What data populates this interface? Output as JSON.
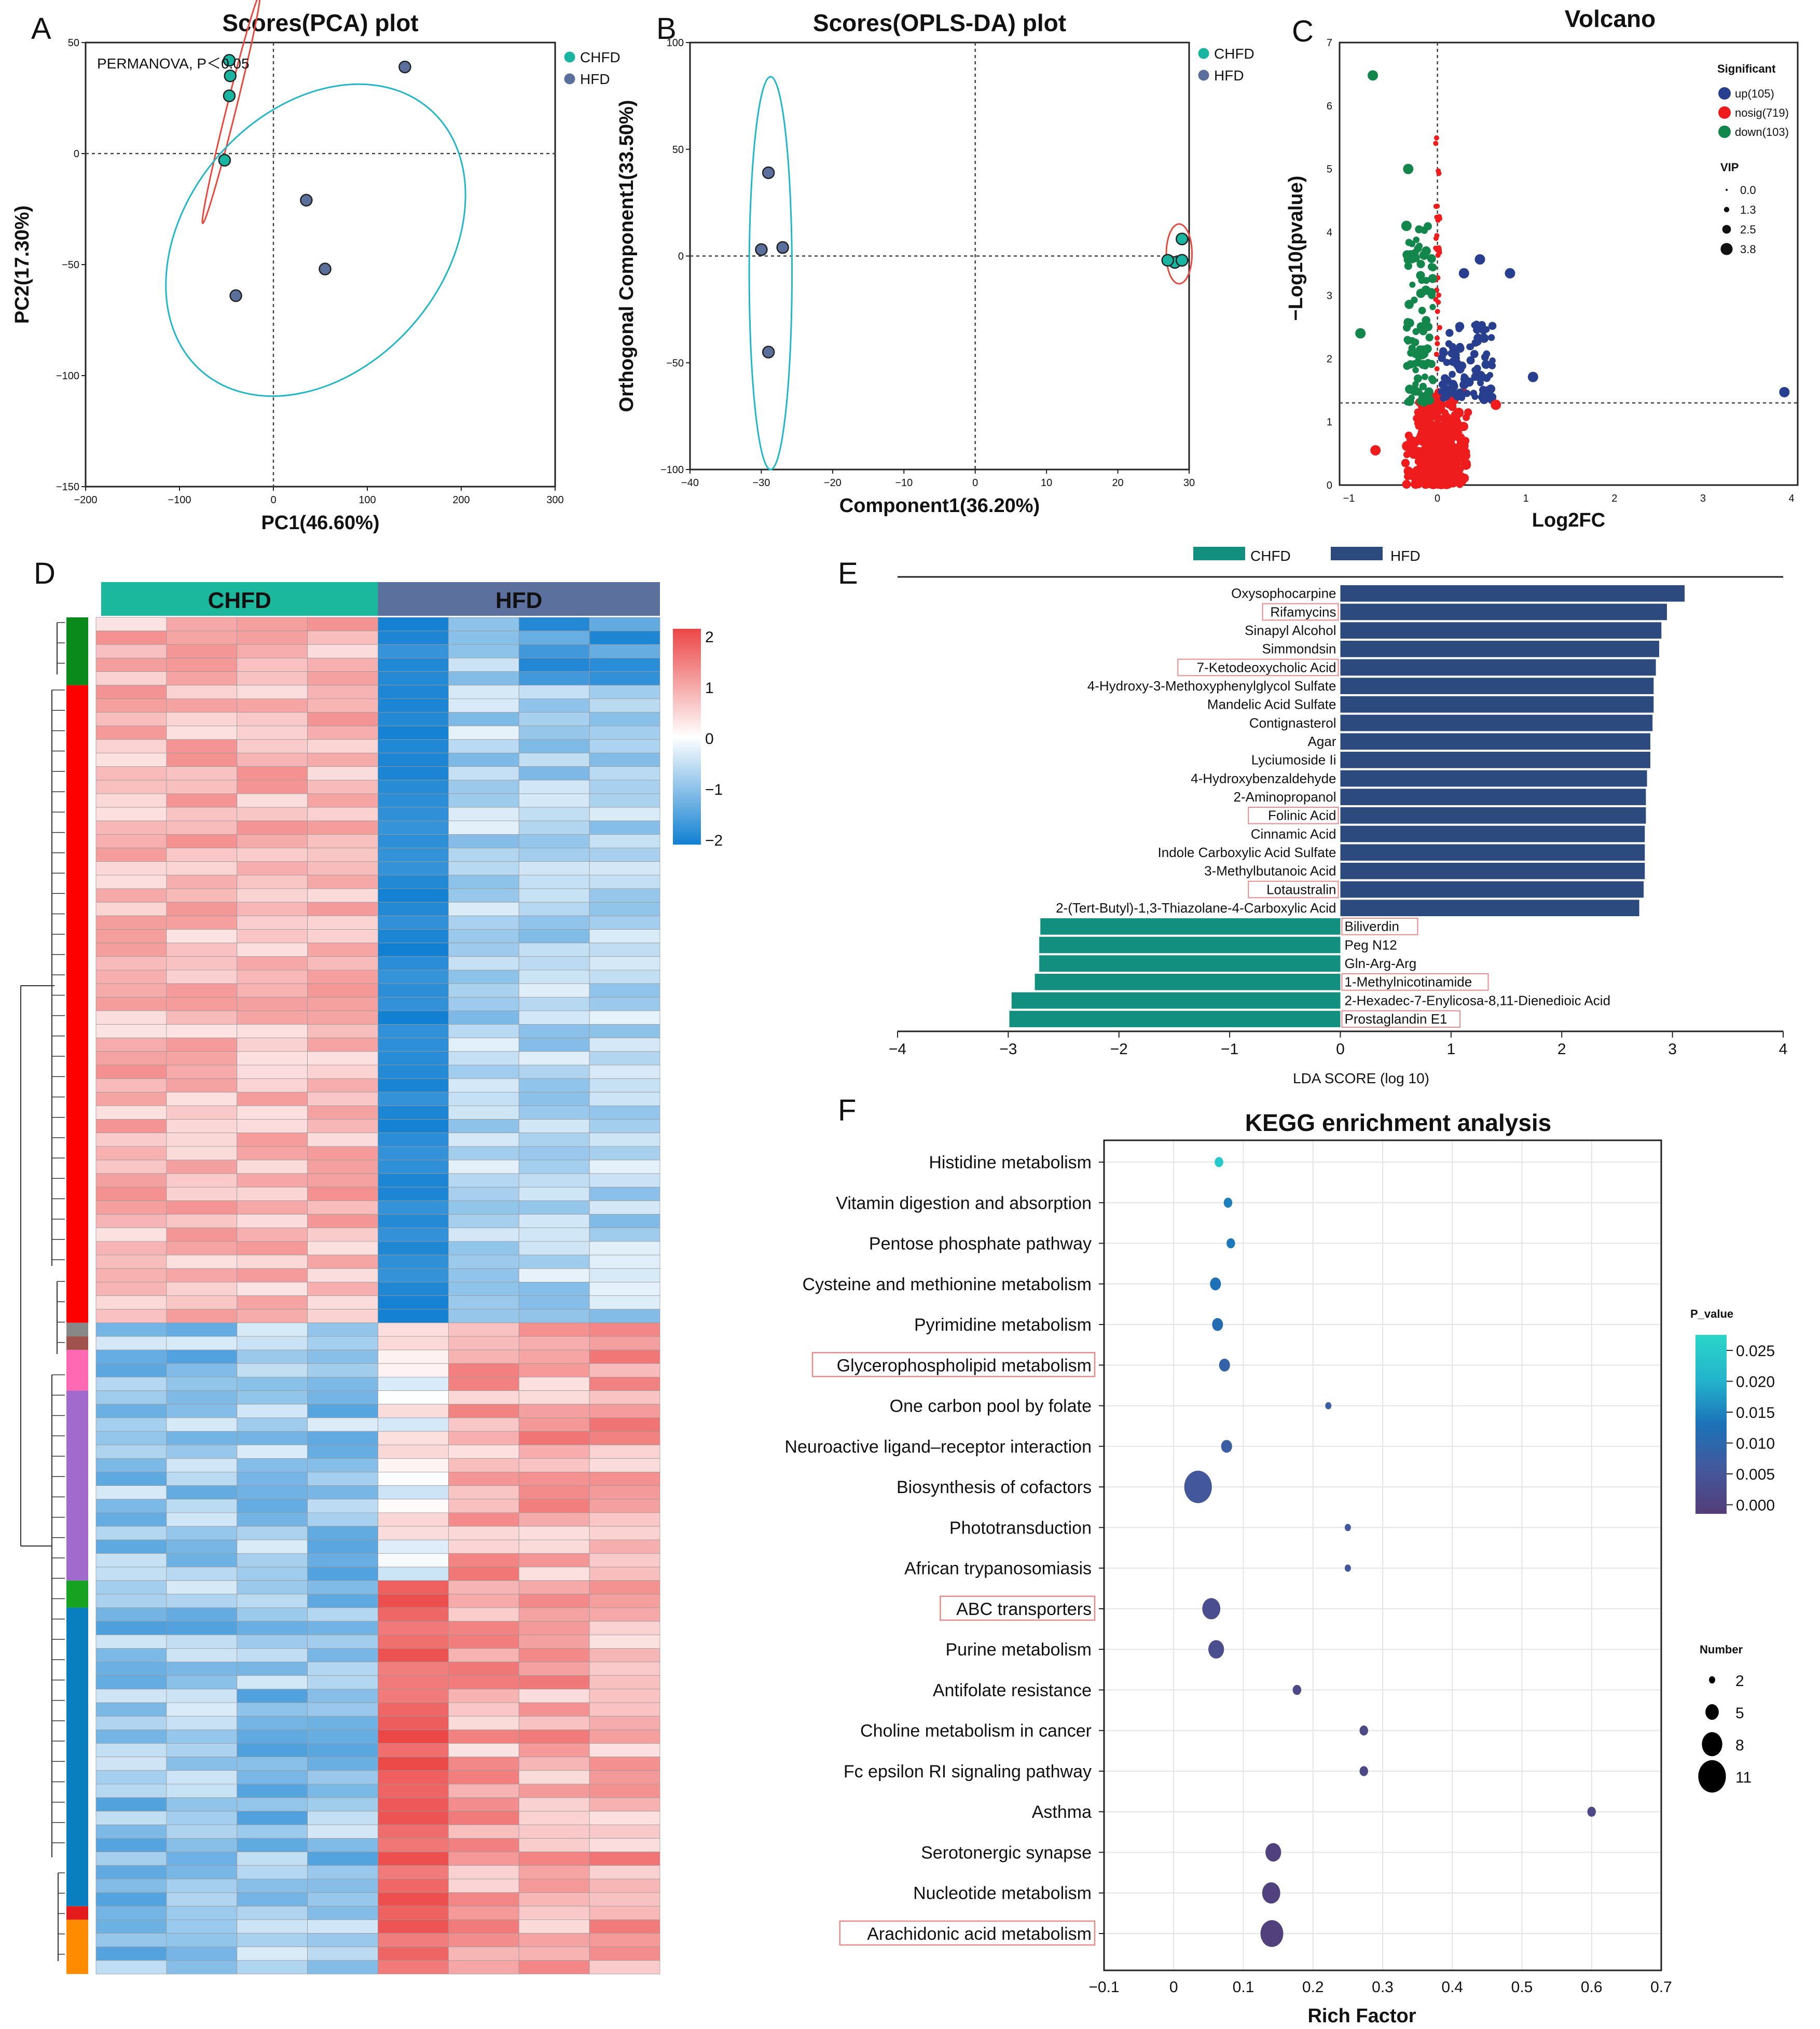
{
  "colors": {
    "chfd": "#1ab5a0",
    "hfd": "#5a6f9c",
    "up": "#283e8f",
    "nosig": "#ee1c1c",
    "down": "#12864b",
    "lda_chfd": "#138f80",
    "lda_hfd": "#2c4a7e",
    "box": "#e88a8a"
  },
  "chart_data": [
    {
      "panel": "A",
      "type": "scatter",
      "title": "Scores(PCA) plot",
      "xlabel": "PC1(46.60%)",
      "ylabel": "PC2(17.30%)",
      "xlim": [
        -200,
        300
      ],
      "ylim": [
        -150,
        50
      ],
      "xticks": [
        -200,
        -100,
        0,
        100,
        200,
        300
      ],
      "yticks": [
        -150,
        -100,
        -50,
        0,
        50
      ],
      "annotation": "PERMANOVA, P＜0.05",
      "legend": [
        "CHFD",
        "HFD"
      ],
      "series": [
        {
          "name": "CHFD",
          "points": [
            [
              -47,
              42
            ],
            [
              -46,
              35
            ],
            [
              -47,
              26
            ],
            [
              -52,
              -3
            ]
          ]
        },
        {
          "name": "HFD",
          "points": [
            [
              140,
              39
            ],
            [
              35,
              -21
            ],
            [
              55,
              -52
            ],
            [
              -40,
              -64
            ]
          ]
        }
      ]
    },
    {
      "panel": "B",
      "type": "scatter",
      "title": "Scores(OPLS-DA) plot",
      "xlabel": "Component1(36.20%)",
      "ylabel": "Orthogonal Component1(33.50%)",
      "xlim": [
        -40,
        30
      ],
      "ylim": [
        -100,
        100
      ],
      "xticks": [
        -40,
        -30,
        -20,
        -10,
        0,
        10,
        20,
        30
      ],
      "yticks": [
        -100,
        -50,
        0,
        50,
        100
      ],
      "legend": [
        "CHFD",
        "HFD"
      ],
      "series": [
        {
          "name": "CHFD",
          "points": [
            [
              29,
              8
            ],
            [
              28,
              -3
            ],
            [
              29,
              -2
            ],
            [
              27,
              -2
            ]
          ]
        },
        {
          "name": "HFD",
          "points": [
            [
              -29,
              39
            ],
            [
              -30,
              3
            ],
            [
              -27,
              4
            ],
            [
              -29,
              -45
            ]
          ]
        }
      ]
    },
    {
      "panel": "C",
      "type": "scatter",
      "title": "Volcano",
      "xlabel": "Log2FC",
      "ylabel": "−Log10(pvalue)",
      "xlim": [
        -1,
        4
      ],
      "ylim": [
        0,
        7
      ],
      "xticks": [
        -1,
        0,
        1,
        2,
        3,
        4
      ],
      "yticks": [
        0,
        1,
        2,
        3,
        4,
        5,
        6,
        7
      ],
      "threshold_y": 1.3,
      "legend_title": "Significant",
      "legend": [
        "up(105)",
        "nosig(719)",
        "down(103)"
      ],
      "vip_title": "VIP",
      "vip_values": [
        "0.0",
        "1.3",
        "2.5",
        "3.8"
      ],
      "highlight": {
        "up": [
          [
            3.92,
            1.47
          ],
          [
            1.08,
            1.71
          ],
          [
            0.82,
            3.35
          ],
          [
            0.48,
            3.57
          ],
          [
            0.3,
            3.35
          ]
        ],
        "down": [
          [
            -0.73,
            6.48
          ],
          [
            -0.87,
            2.4
          ],
          [
            -0.33,
            5.0
          ],
          [
            -0.35,
            4.1
          ]
        ],
        "nosig": [
          [
            0.66,
            1.27
          ],
          [
            -0.7,
            0.55
          ]
        ]
      }
    },
    {
      "panel": "D",
      "type": "heatmap",
      "groups": [
        "CHFD",
        "HFD"
      ],
      "colorbar_ticks": [
        "2",
        "1",
        "0",
        "−1",
        "−2"
      ],
      "vmin": -2,
      "vmax": 2,
      "rows": 100,
      "cols": 8
    },
    {
      "panel": "E",
      "type": "bar",
      "xlabel": "LDA SCORE (log 10)",
      "xlim": [
        -4,
        4
      ],
      "xticks": [
        "−4",
        "−3",
        "−2",
        "−1",
        "0",
        "1",
        "2",
        "3",
        "4"
      ],
      "legend": [
        "CHFD",
        "HFD"
      ],
      "bars": [
        {
          "label": "Oxysophocarpine",
          "value": 3.11,
          "group": "HFD",
          "boxed": false
        },
        {
          "label": "Rifamycins",
          "value": 2.95,
          "group": "HFD",
          "boxed": true
        },
        {
          "label": "Sinapyl Alcohol",
          "value": 2.9,
          "group": "HFD",
          "boxed": false
        },
        {
          "label": "Simmondsin",
          "value": 2.88,
          "group": "HFD",
          "boxed": false
        },
        {
          "label": "7-Ketodeoxycholic Acid",
          "value": 2.85,
          "group": "HFD",
          "boxed": true
        },
        {
          "label": "4-Hydroxy-3-Methoxyphenylglycol Sulfate",
          "value": 2.83,
          "group": "HFD",
          "boxed": false
        },
        {
          "label": "Mandelic Acid Sulfate",
          "value": 2.83,
          "group": "HFD",
          "boxed": false
        },
        {
          "label": "Contignasterol",
          "value": 2.82,
          "group": "HFD",
          "boxed": false
        },
        {
          "label": "Agar",
          "value": 2.8,
          "group": "HFD",
          "boxed": false
        },
        {
          "label": "Lyciumoside Ii",
          "value": 2.8,
          "group": "HFD",
          "boxed": false
        },
        {
          "label": "4-Hydroxybenzaldehyde",
          "value": 2.77,
          "group": "HFD",
          "boxed": false
        },
        {
          "label": "2-Aminopropanol",
          "value": 2.76,
          "group": "HFD",
          "boxed": false
        },
        {
          "label": "Folinic Acid",
          "value": 2.76,
          "group": "HFD",
          "boxed": true
        },
        {
          "label": "Cinnamic Acid",
          "value": 2.75,
          "group": "HFD",
          "boxed": false
        },
        {
          "label": "Indole Carboxylic Acid Sulfate",
          "value": 2.75,
          "group": "HFD",
          "boxed": false
        },
        {
          "label": "3-Methylbutanoic Acid",
          "value": 2.75,
          "group": "HFD",
          "boxed": false
        },
        {
          "label": "Lotaustralin",
          "value": 2.74,
          "group": "HFD",
          "boxed": true
        },
        {
          "label": "2-(Tert-Butyl)-1,3-Thiazolane-4-Carboxylic Acid",
          "value": 2.7,
          "group": "HFD",
          "boxed": false
        },
        {
          "label": "Biliverdin",
          "value": -2.71,
          "group": "CHFD",
          "boxed": true
        },
        {
          "label": "Peg N12",
          "value": -2.72,
          "group": "CHFD",
          "boxed": false
        },
        {
          "label": "Gln-Arg-Arg",
          "value": -2.72,
          "group": "CHFD",
          "boxed": false
        },
        {
          "label": "1-Methylnicotinamide",
          "value": -2.76,
          "group": "CHFD",
          "boxed": true
        },
        {
          "label": "2-Hexadec-7-Enylicosa-8,11-Dienedioic Acid",
          "value": -2.97,
          "group": "CHFD",
          "boxed": false
        },
        {
          "label": "Prostaglandin E1",
          "value": -2.99,
          "group": "CHFD",
          "boxed": true
        }
      ]
    },
    {
      "panel": "F",
      "type": "scatter",
      "title": "KEGG enrichment analysis",
      "xlabel": "Rich Factor",
      "xlim": [
        -0.1,
        0.7
      ],
      "xticks": [
        "−0.1",
        "0",
        "0.1",
        "0.2",
        "0.3",
        "0.4",
        "0.5",
        "0.6",
        "0.7"
      ],
      "color_title": "P_value",
      "color_ticks": [
        "0.025",
        "0.020",
        "0.015",
        "0.010",
        "0.005",
        "0.000"
      ],
      "size_title": "Number",
      "size_ticks": [
        "2",
        "5",
        "8",
        "11"
      ],
      "points": [
        {
          "term": "Histidine metabolism",
          "x": 0.065,
          "p": 0.024,
          "n": 3,
          "boxed": false
        },
        {
          "term": "Vitamin digestion and absorption",
          "x": 0.078,
          "p": 0.012,
          "n": 3,
          "boxed": false
        },
        {
          "term": "Pentose phosphate pathway",
          "x": 0.082,
          "p": 0.011,
          "n": 3,
          "boxed": false
        },
        {
          "term": "Cysteine and methionine metabolism",
          "x": 0.06,
          "p": 0.01,
          "n": 4,
          "boxed": false
        },
        {
          "term": "Pyrimidine metabolism",
          "x": 0.063,
          "p": 0.009,
          "n": 4,
          "boxed": false
        },
        {
          "term": "Glycerophospholipid metabolism",
          "x": 0.073,
          "p": 0.007,
          "n": 4,
          "boxed": true
        },
        {
          "term": "One carbon pool by folate",
          "x": 0.222,
          "p": 0.006,
          "n": 2,
          "boxed": false
        },
        {
          "term": "Neuroactive ligand–receptor interaction",
          "x": 0.076,
          "p": 0.006,
          "n": 4,
          "boxed": false
        },
        {
          "term": "Biosynthesis of cofactors",
          "x": 0.035,
          "p": 0.005,
          "n": 11,
          "boxed": false
        },
        {
          "term": "Phototransduction",
          "x": 0.25,
          "p": 0.005,
          "n": 2,
          "boxed": false
        },
        {
          "term": "African trypanosomiasis",
          "x": 0.25,
          "p": 0.005,
          "n": 2,
          "boxed": false
        },
        {
          "term": "ABC transporters",
          "x": 0.054,
          "p": 0.003,
          "n": 7,
          "boxed": true
        },
        {
          "term": "Purine metabolism",
          "x": 0.061,
          "p": 0.003,
          "n": 6,
          "boxed": false
        },
        {
          "term": "Antifolate resistance",
          "x": 0.177,
          "p": 0.002,
          "n": 3,
          "boxed": false
        },
        {
          "term": "Choline metabolism in cancer",
          "x": 0.273,
          "p": 0.002,
          "n": 3,
          "boxed": false
        },
        {
          "term": "Fc epsilon RI signaling pathway",
          "x": 0.273,
          "p": 0.002,
          "n": 3,
          "boxed": false
        },
        {
          "term": "Asthma",
          "x": 0.6,
          "p": 0.002,
          "n": 3,
          "boxed": false
        },
        {
          "term": "Serotonergic synapse",
          "x": 0.143,
          "p": 0.001,
          "n": 6,
          "boxed": false
        },
        {
          "term": "Nucleotide metabolism",
          "x": 0.14,
          "p": 0.001,
          "n": 7,
          "boxed": false
        },
        {
          "term": "Arachidonic acid metabolism",
          "x": 0.141,
          "p": 0.0005,
          "n": 9,
          "boxed": true
        }
      ]
    }
  ]
}
